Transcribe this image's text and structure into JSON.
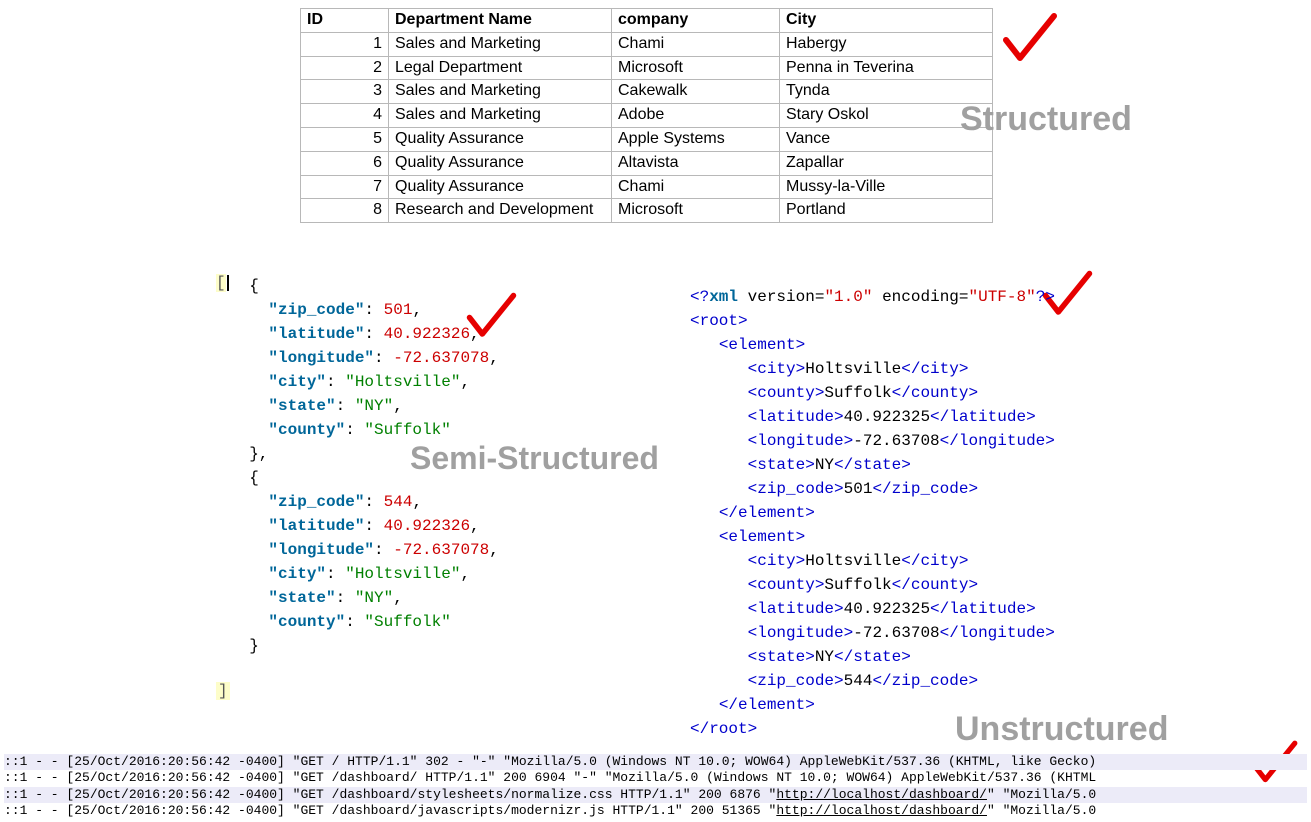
{
  "labels": {
    "structured": "Structured",
    "semi": "Semi-Structured",
    "unstructured": "Unstructured"
  },
  "label_style": {
    "color": "#a0a0a0",
    "structured_fontsize": 34,
    "semi_fontsize": 32,
    "unstructured_fontsize": 34
  },
  "checkmark_color": "#e60000",
  "table": {
    "columns": [
      "ID",
      "Department Name",
      "company",
      "City"
    ],
    "rows": [
      [
        "1",
        "Sales and Marketing",
        "Chami",
        "Habergy"
      ],
      [
        "2",
        "Legal Department",
        "Microsoft",
        "Penna in Teverina"
      ],
      [
        "3",
        "Sales and Marketing",
        "Cakewalk",
        "Tynda"
      ],
      [
        "4",
        "Sales and Marketing",
        "Adobe",
        "Stary Oskol"
      ],
      [
        "5",
        "Quality Assurance",
        "Apple Systems",
        "Vance"
      ],
      [
        "6",
        "Quality Assurance",
        "Altavista",
        "Zapallar"
      ],
      [
        "7",
        "Quality Assurance",
        "Chami",
        "Mussy-la-Ville"
      ],
      [
        "8",
        "Research and Development",
        "Microsoft",
        "Portland"
      ]
    ],
    "border_color": "#b8b8b8",
    "font_size": 16
  },
  "json_snippet": {
    "open": "[",
    "close": "]",
    "records": [
      {
        "zip_code": "501",
        "latitude": "40.922326",
        "longitude": "-72.637078",
        "city": "Holtsville",
        "state": "NY",
        "county": "Suffolk"
      },
      {
        "zip_code": "544",
        "latitude": "40.922326",
        "longitude": "-72.637078",
        "city": "Holtsville",
        "state": "NY",
        "county": "Suffolk"
      }
    ],
    "keys_order": [
      "zip_code",
      "latitude",
      "longitude",
      "city",
      "state",
      "county"
    ],
    "numeric_keys": [
      "zip_code",
      "latitude",
      "longitude"
    ],
    "colors": {
      "key": "#006699",
      "num": "#cc0000",
      "str": "#008000",
      "punct": "#000000"
    },
    "highlight_bg": "#fdfdc9"
  },
  "xml_snippet": {
    "decl": {
      "pi": "xml",
      "attrs": [
        [
          "version",
          "1.0"
        ],
        [
          "encoding",
          "UTF-8"
        ]
      ],
      "tail": "?>"
    },
    "root": "root",
    "element_tag": "element",
    "records": [
      {
        "city": "Holtsville",
        "county": "Suffolk",
        "latitude": "40.922325",
        "longitude": "-72.63708",
        "state": "NY",
        "zip_code": "501"
      },
      {
        "city": "Holtsville",
        "county": "Suffolk",
        "latitude": "40.922325",
        "longitude": "-72.63708",
        "state": "NY",
        "zip_code": "544"
      }
    ],
    "field_order": [
      "city",
      "county",
      "latitude",
      "longitude",
      "state",
      "zip_code"
    ],
    "colors": {
      "tag": "#0000cc",
      "attr": "#cc0000",
      "decl": "#006699",
      "text": "#000000"
    }
  },
  "logs": {
    "prefix": "::1 - - ",
    "ts": "[25/Oct/2016:20:56:42 -0400]",
    "lines": [
      {
        "req": "\"GET / HTTP/1.1\"",
        "status": "302 -",
        "ref": "\"-\"",
        "ua": "\"Mozilla/5.0 (Windows NT 10.0; WOW64) AppleWebKit/537.36 (KHTML, like Gecko)"
      },
      {
        "req": "\"GET /dashboard/ HTTP/1.1\"",
        "status": "200 6904",
        "ref": "\"-\"",
        "ua": "\"Mozilla/5.0 (Windows NT 10.0; WOW64) AppleWebKit/537.36 (KHTML"
      },
      {
        "req": "\"GET /dashboard/stylesheets/normalize.css HTTP/1.1\"",
        "status": "200 6876",
        "ref_url": "http://localhost/dashboard/",
        "ua": "\"Mozilla/5.0"
      },
      {
        "req": "\"GET /dashboard/javascripts/modernizr.js HTTP/1.1\"",
        "status": "200 51365",
        "ref_url": "http://localhost/dashboard/",
        "ua": "\"Mozilla/5.0"
      }
    ],
    "font_size": 13,
    "alt_row_bg": "#ecebf8"
  }
}
